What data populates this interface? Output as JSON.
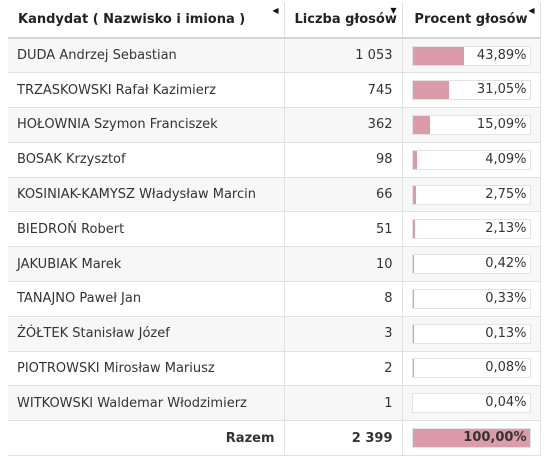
{
  "headers": {
    "candidate": "Kandydat ( Nazwisko i imiona )",
    "votes": "Liczba głosów",
    "percent": "Procent głosów"
  },
  "sort_icons": {
    "candidate": "caret-left-icon",
    "votes": "caret-down-icon",
    "percent": "caret-left-icon"
  },
  "colors": {
    "bar_fill": "#db9ba8",
    "stripe": "#f7f7f7"
  },
  "rows": [
    {
      "name": "DUDA Andrzej Sebastian",
      "votes": "1 053",
      "percent": "43,89%",
      "share": 43.89
    },
    {
      "name": "TRZASKOWSKI Rafał Kazimierz",
      "votes": "745",
      "percent": "31,05%",
      "share": 31.05
    },
    {
      "name": "HOŁOWNIA Szymon Franciszek",
      "votes": "362",
      "percent": "15,09%",
      "share": 15.09
    },
    {
      "name": "BOSAK Krzysztof",
      "votes": "98",
      "percent": "4,09%",
      "share": 4.09
    },
    {
      "name": "KOSINIAK-KAMYSZ Władysław Marcin",
      "votes": "66",
      "percent": "2,75%",
      "share": 2.75
    },
    {
      "name": "BIEDROŃ Robert",
      "votes": "51",
      "percent": "2,13%",
      "share": 2.13
    },
    {
      "name": "JAKUBIAK Marek",
      "votes": "10",
      "percent": "0,42%",
      "share": 0.42
    },
    {
      "name": "TANAJNO Paweł Jan",
      "votes": "8",
      "percent": "0,33%",
      "share": 0.33
    },
    {
      "name": "ŻÓŁTEK Stanisław Józef",
      "votes": "3",
      "percent": "0,13%",
      "share": 0.13
    },
    {
      "name": "PIOTROWSKI Mirosław Mariusz",
      "votes": "2",
      "percent": "0,08%",
      "share": 0.08
    },
    {
      "name": "WITKOWSKI Waldemar Włodzimierz",
      "votes": "1",
      "percent": "0,04%",
      "share": 0.04
    }
  ],
  "total": {
    "label": "Razem",
    "votes": "2 399",
    "percent": "100,00%",
    "share": 100
  }
}
